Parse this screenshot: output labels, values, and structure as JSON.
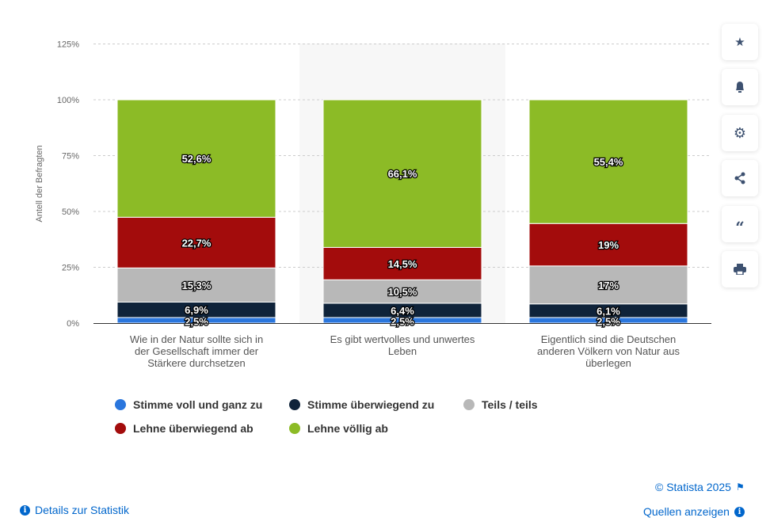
{
  "chart_data": {
    "type": "bar",
    "stacked": true,
    "ylabel": "Antell der Befragten",
    "ylim": [
      0,
      125
    ],
    "yticks": [
      "0%",
      "25%",
      "50%",
      "75%",
      "100%",
      "125%"
    ],
    "categories": [
      "Wie in der Natur sollte sich in der Gesellschaft immer der Stärkere durchsetzen",
      "Es gibt wertvolles und unwertes Leben",
      "Eigentlich sind die Deutschen anderen Völkern von Natur aus überlegen"
    ],
    "series": [
      {
        "name": "Stimme voll und ganz zu",
        "color": "#2a76dd",
        "values": [
          2.5,
          2.5,
          2.5
        ],
        "labels": [
          "2,5%",
          "2,5%",
          "2,5%"
        ]
      },
      {
        "name": "Stimme überwiegend zu",
        "color": "#0f233a",
        "values": [
          6.9,
          6.4,
          6.1
        ],
        "labels": [
          "6,9%",
          "6,4%",
          "6,1%"
        ]
      },
      {
        "name": "Teils / teils",
        "color": "#b8b8b8",
        "values": [
          15.3,
          10.5,
          17
        ],
        "labels": [
          "15,3%",
          "10,5%",
          "17%"
        ]
      },
      {
        "name": "Lehne überwiegend ab",
        "color": "#a30c0c",
        "values": [
          22.7,
          14.5,
          19
        ],
        "labels": [
          "22,7%",
          "14,5%",
          "19%"
        ]
      },
      {
        "name": "Lehne völlig ab",
        "color": "#8cbb26",
        "values": [
          52.6,
          66.1,
          55.4
        ],
        "labels": [
          "52,6%",
          "66,1%",
          "55,4%"
        ]
      }
    ],
    "legend_position": "bottom-left"
  },
  "footer": {
    "copyright": "© Statista 2025",
    "details": "Details zur Statistik",
    "sources": "Quellen anzeigen"
  },
  "sidebar": [
    "star-icon",
    "bell-icon",
    "gear-icon",
    "share-icon",
    "quote-icon",
    "print-icon"
  ]
}
